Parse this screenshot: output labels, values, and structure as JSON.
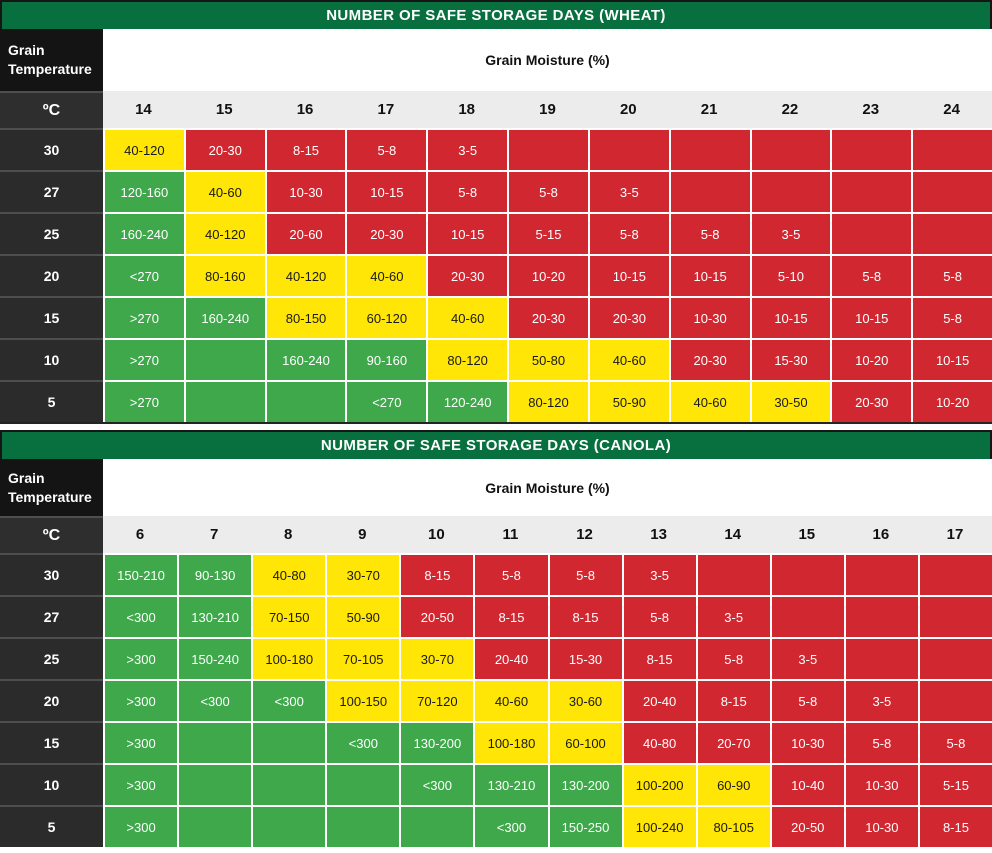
{
  "colors": {
    "title_green": "#07703e",
    "safe_green": "#3ea84b",
    "caution_yellow": "#ffe606",
    "risk_red": "#d12730",
    "corner_black": "#141414",
    "temperature_dark": "#2b2b2b",
    "moisture_header_gray": "#ececec"
  },
  "chart_data": [
    {
      "type": "heatmap",
      "title": "NUMBER OF SAFE STORAGE DAYS (WHEAT)",
      "col_header": "Grain Moisture (%)",
      "row_header": {
        "line1": "Grain",
        "line2": "Temperature",
        "unit": "ºC"
      },
      "columns": [
        "14",
        "15",
        "16",
        "17",
        "18",
        "19",
        "20",
        "21",
        "22",
        "23",
        "24"
      ],
      "row_temps": [
        "30",
        "27",
        "25",
        "20",
        "15",
        "10",
        "5"
      ],
      "cell_color_key": {
        "g": "#3ea84b",
        "y": "#ffe606",
        "r": "#d12730"
      },
      "cells": [
        [
          "40-120|y",
          "20-30|r",
          "8-15|r",
          "5-8|r",
          "3-5|r",
          "|r",
          "|r",
          "|r",
          "|r",
          "|r",
          "|r"
        ],
        [
          "120-160|g",
          "40-60|y",
          "10-30|r",
          "10-15|r",
          "5-8|r",
          "5-8|r",
          "3-5|r",
          "|r",
          "|r",
          "|r",
          "|r"
        ],
        [
          "160-240|g",
          "40-120|y",
          "20-60|r",
          "20-30|r",
          "10-15|r",
          "5-15|r",
          "5-8|r",
          "5-8|r",
          "3-5|r",
          "|r",
          "|r"
        ],
        [
          "<270|g",
          "80-160|y",
          "40-120|y",
          "40-60|y",
          "20-30|r",
          "10-20|r",
          "10-15|r",
          "10-15|r",
          "5-10|r",
          "5-8|r",
          "5-8|r"
        ],
        [
          ">270|g",
          "160-240|g",
          "80-150|y",
          "60-120|y",
          "40-60|y",
          "20-30|r",
          "20-30|r",
          "10-30|r",
          "10-15|r",
          "10-15|r",
          "5-8|r"
        ],
        [
          ">270|g",
          "|g",
          "160-240|g",
          "90-160|g",
          "80-120|y",
          "50-80|y",
          "40-60|y",
          "20-30|r",
          "15-30|r",
          "10-20|r",
          "10-15|r"
        ],
        [
          ">270|g",
          "|g",
          "|g",
          "<270|g",
          "120-240|g",
          "80-120|y",
          "50-90|y",
          "40-60|y",
          "30-50|y",
          "20-30|r",
          "10-20|r"
        ]
      ]
    },
    {
      "type": "heatmap",
      "title": "NUMBER OF SAFE STORAGE DAYS (CANOLA)",
      "col_header": "Grain Moisture (%)",
      "row_header": {
        "line1": "Grain",
        "line2": "Temperature",
        "unit": "ºC"
      },
      "columns": [
        "6",
        "7",
        "8",
        "9",
        "10",
        "11",
        "12",
        "13",
        "14",
        "15",
        "16",
        "17"
      ],
      "row_temps": [
        "30",
        "27",
        "25",
        "20",
        "15",
        "10",
        "5"
      ],
      "cell_color_key": {
        "g": "#3ea84b",
        "y": "#ffe606",
        "r": "#d12730"
      },
      "cells": [
        [
          "150-210|g",
          "90-130|g",
          "40-80|y",
          "30-70|y",
          "8-15|r",
          "5-8|r",
          "5-8|r",
          "3-5|r",
          "|r",
          "|r",
          "|r",
          "|r"
        ],
        [
          "<300|g",
          "130-210|g",
          "70-150|y",
          "50-90|y",
          "20-50|r",
          "8-15|r",
          "8-15|r",
          "5-8|r",
          "3-5|r",
          "|r",
          "|r",
          "|r"
        ],
        [
          ">300|g",
          "150-240|g",
          "100-180|y",
          "70-105|y",
          "30-70|y",
          "20-40|r",
          "15-30|r",
          "8-15|r",
          "5-8|r",
          "3-5|r",
          "|r",
          "|r"
        ],
        [
          ">300|g",
          "<300|g",
          "<300|g",
          "100-150|y",
          "70-120|y",
          "40-60|y",
          "30-60|y",
          "20-40|r",
          "8-15|r",
          "5-8|r",
          "3-5|r",
          "|r"
        ],
        [
          ">300|g",
          "|g",
          "|g",
          "<300|g",
          "130-200|g",
          "100-180|y",
          "60-100|y",
          "40-80|r",
          "20-70|r",
          "10-30|r",
          "5-8|r",
          "5-8|r"
        ],
        [
          ">300|g",
          "|g",
          "|g",
          "|g",
          "<300|g",
          "130-210|g",
          "130-200|g",
          "100-200|y",
          "60-90|y",
          "10-40|r",
          "10-30|r",
          "5-15|r"
        ],
        [
          ">300|g",
          "|g",
          "|g",
          "|g",
          "|g",
          "<300|g",
          "150-250|g",
          "100-240|y",
          "80-105|y",
          "20-50|r",
          "10-30|r",
          "8-15|r"
        ]
      ]
    }
  ]
}
